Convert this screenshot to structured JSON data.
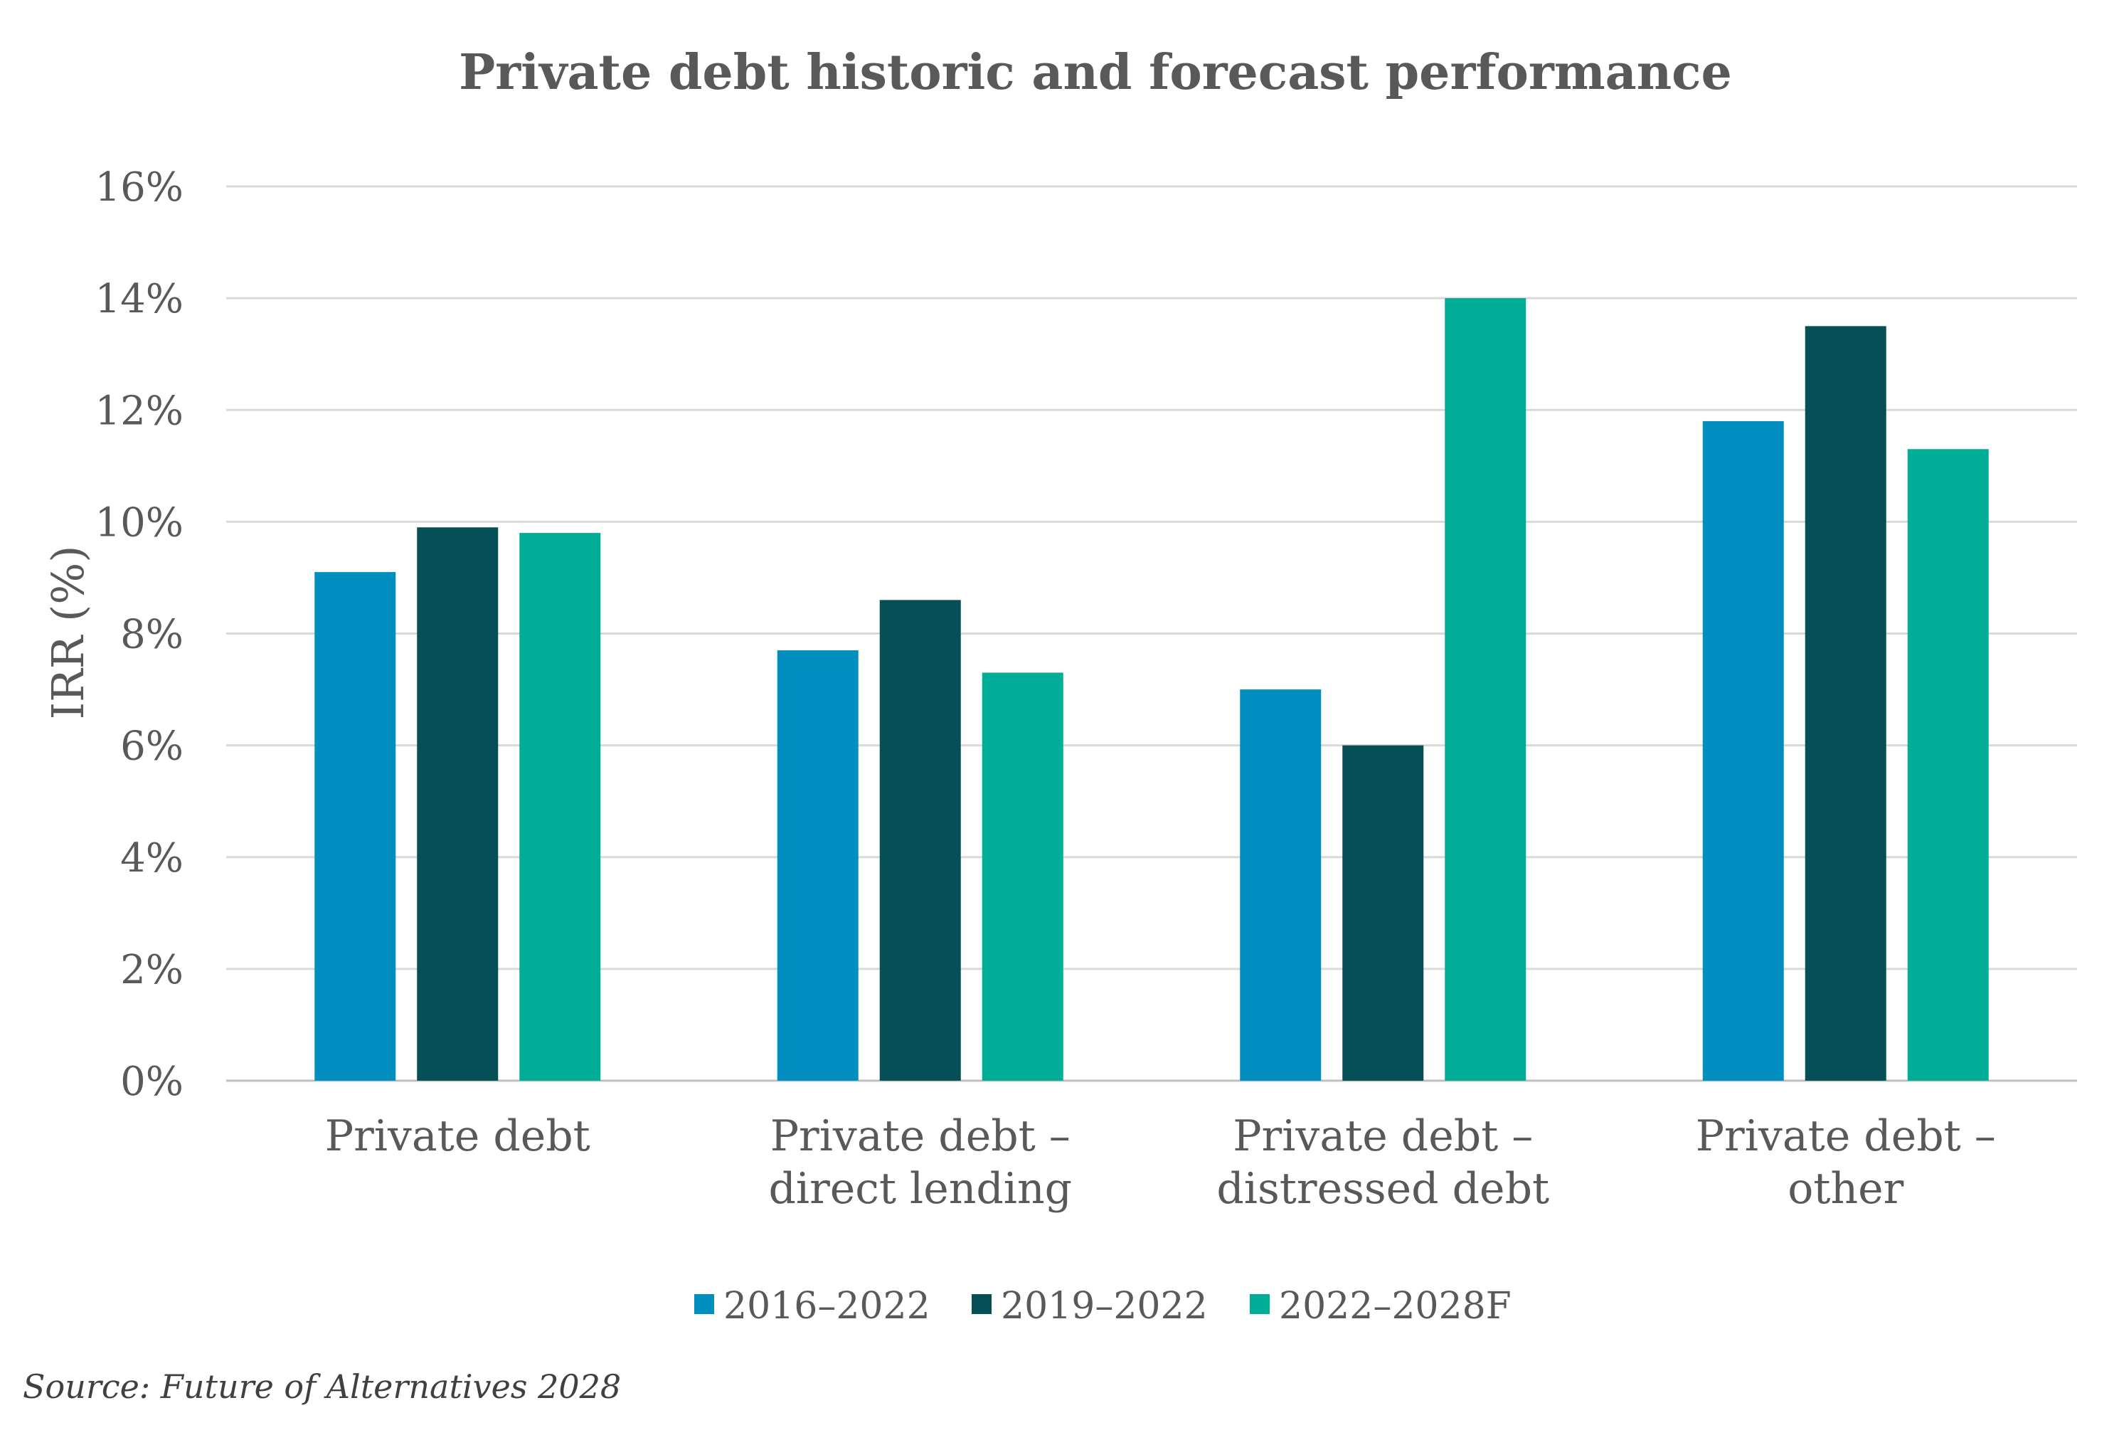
{
  "chart_data": {
    "type": "bar",
    "title": "Private debt historic and forecast performance",
    "ylabel": "IRR (%)",
    "xlabel": "",
    "ylim": [
      0,
      16
    ],
    "yticks": [
      0,
      2,
      4,
      6,
      8,
      10,
      12,
      14,
      16
    ],
    "ytick_labels": [
      "0%",
      "2%",
      "4%",
      "6%",
      "8%",
      "10%",
      "12%",
      "14%",
      "16%"
    ],
    "categories": [
      [
        "Private debt"
      ],
      [
        "Private debt –",
        "direct lending"
      ],
      [
        "Private debt –",
        "distressed debt"
      ],
      [
        "Private debt –",
        "other"
      ]
    ],
    "series": [
      {
        "name": "2016–2022",
        "color": "#008fbf",
        "values": [
          9.1,
          7.7,
          7.0,
          11.8
        ]
      },
      {
        "name": "2019–2022",
        "color": "#064f56",
        "values": [
          9.9,
          8.6,
          6.0,
          13.5
        ]
      },
      {
        "name": "2022–2028F",
        "color": "#00ad97",
        "values": [
          9.8,
          7.3,
          14.0,
          11.3
        ]
      }
    ],
    "grid": true,
    "legend_position": "bottom"
  },
  "source": "Source: Future of Alternatives 2028"
}
